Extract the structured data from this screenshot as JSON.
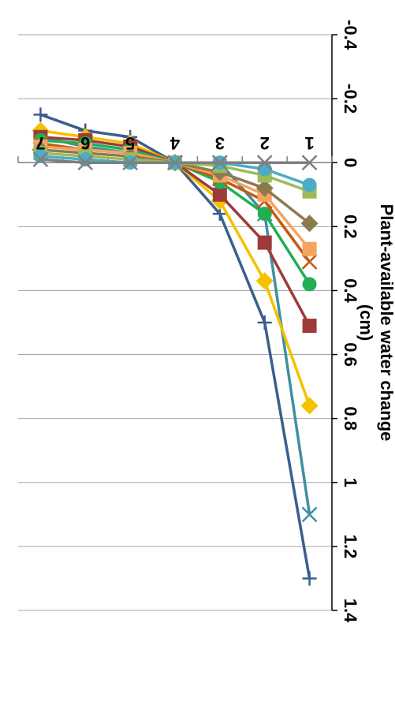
{
  "chart_data": {
    "type": "line",
    "orientation": "rotated-180",
    "title": "",
    "xlabel": "",
    "ylabel": [
      "Plant-available water change",
      "(cm)"
    ],
    "x": [
      1,
      2,
      3,
      4,
      5,
      6,
      7
    ],
    "x_tick_labels": [
      "1",
      "2",
      "3",
      "4",
      "5",
      "6",
      "7"
    ],
    "ylim": [
      -0.4,
      1.4
    ],
    "y_ticks": [
      -0.4,
      -0.2,
      0,
      0.2,
      0.4,
      0.6,
      0.8,
      1,
      1.2,
      1.4
    ],
    "y_tick_labels": [
      "-0.4",
      "-0.2",
      "0",
      "0.2",
      "0.4",
      "0.6",
      "0.8",
      "1",
      "1.2",
      "1.4"
    ],
    "grid": "horizontal",
    "legend": "none",
    "series": [
      {
        "color": "#3B5E8C",
        "marker": "plus",
        "values": [
          1.3,
          0.5,
          0.16,
          0,
          -0.08,
          -0.1,
          -0.15
        ]
      },
      {
        "color": "#3F8FA3",
        "marker": "x",
        "values": [
          1.1,
          0.16,
          0.0,
          0,
          -0.03,
          -0.05,
          -0.08
        ]
      },
      {
        "color": "#F5C000",
        "marker": "diamond",
        "values": [
          0.76,
          0.37,
          0.12,
          0,
          -0.06,
          -0.08,
          -0.1
        ]
      },
      {
        "color": "#9E3B3A",
        "marker": "square",
        "values": [
          0.51,
          0.25,
          0.1,
          0,
          -0.05,
          -0.07,
          -0.08
        ]
      },
      {
        "color": "#1FAF55",
        "marker": "circle",
        "values": [
          0.38,
          0.16,
          0.06,
          0,
          -0.04,
          -0.06,
          -0.07
        ]
      },
      {
        "color": "#C55A11",
        "marker": "x",
        "values": [
          0.31,
          0.12,
          0.05,
          0,
          -0.03,
          -0.04,
          -0.06
        ]
      },
      {
        "color": "#F4A460",
        "marker": "square",
        "values": [
          0.27,
          0.1,
          0.04,
          0,
          -0.03,
          -0.04,
          -0.05
        ]
      },
      {
        "color": "#8C7A4F",
        "marker": "diamond",
        "values": [
          0.19,
          0.08,
          0.03,
          0,
          -0.02,
          -0.03,
          -0.04
        ]
      },
      {
        "color": "#9BBB59",
        "marker": "square",
        "values": [
          0.09,
          0.04,
          0.01,
          0,
          -0.01,
          -0.02,
          -0.03
        ]
      },
      {
        "color": "#4BACC6",
        "marker": "circle",
        "values": [
          0.07,
          0.02,
          0.0,
          0,
          0.0,
          -0.01,
          -0.02
        ]
      },
      {
        "color": "#7F7F7F",
        "marker": "x",
        "values": [
          0.0,
          0.0,
          0.0,
          0,
          0.0,
          0.0,
          -0.01
        ]
      }
    ],
    "colors": {
      "axis": "#000000",
      "grid": "#A6A6A6",
      "background": "#FFFFFF"
    }
  }
}
